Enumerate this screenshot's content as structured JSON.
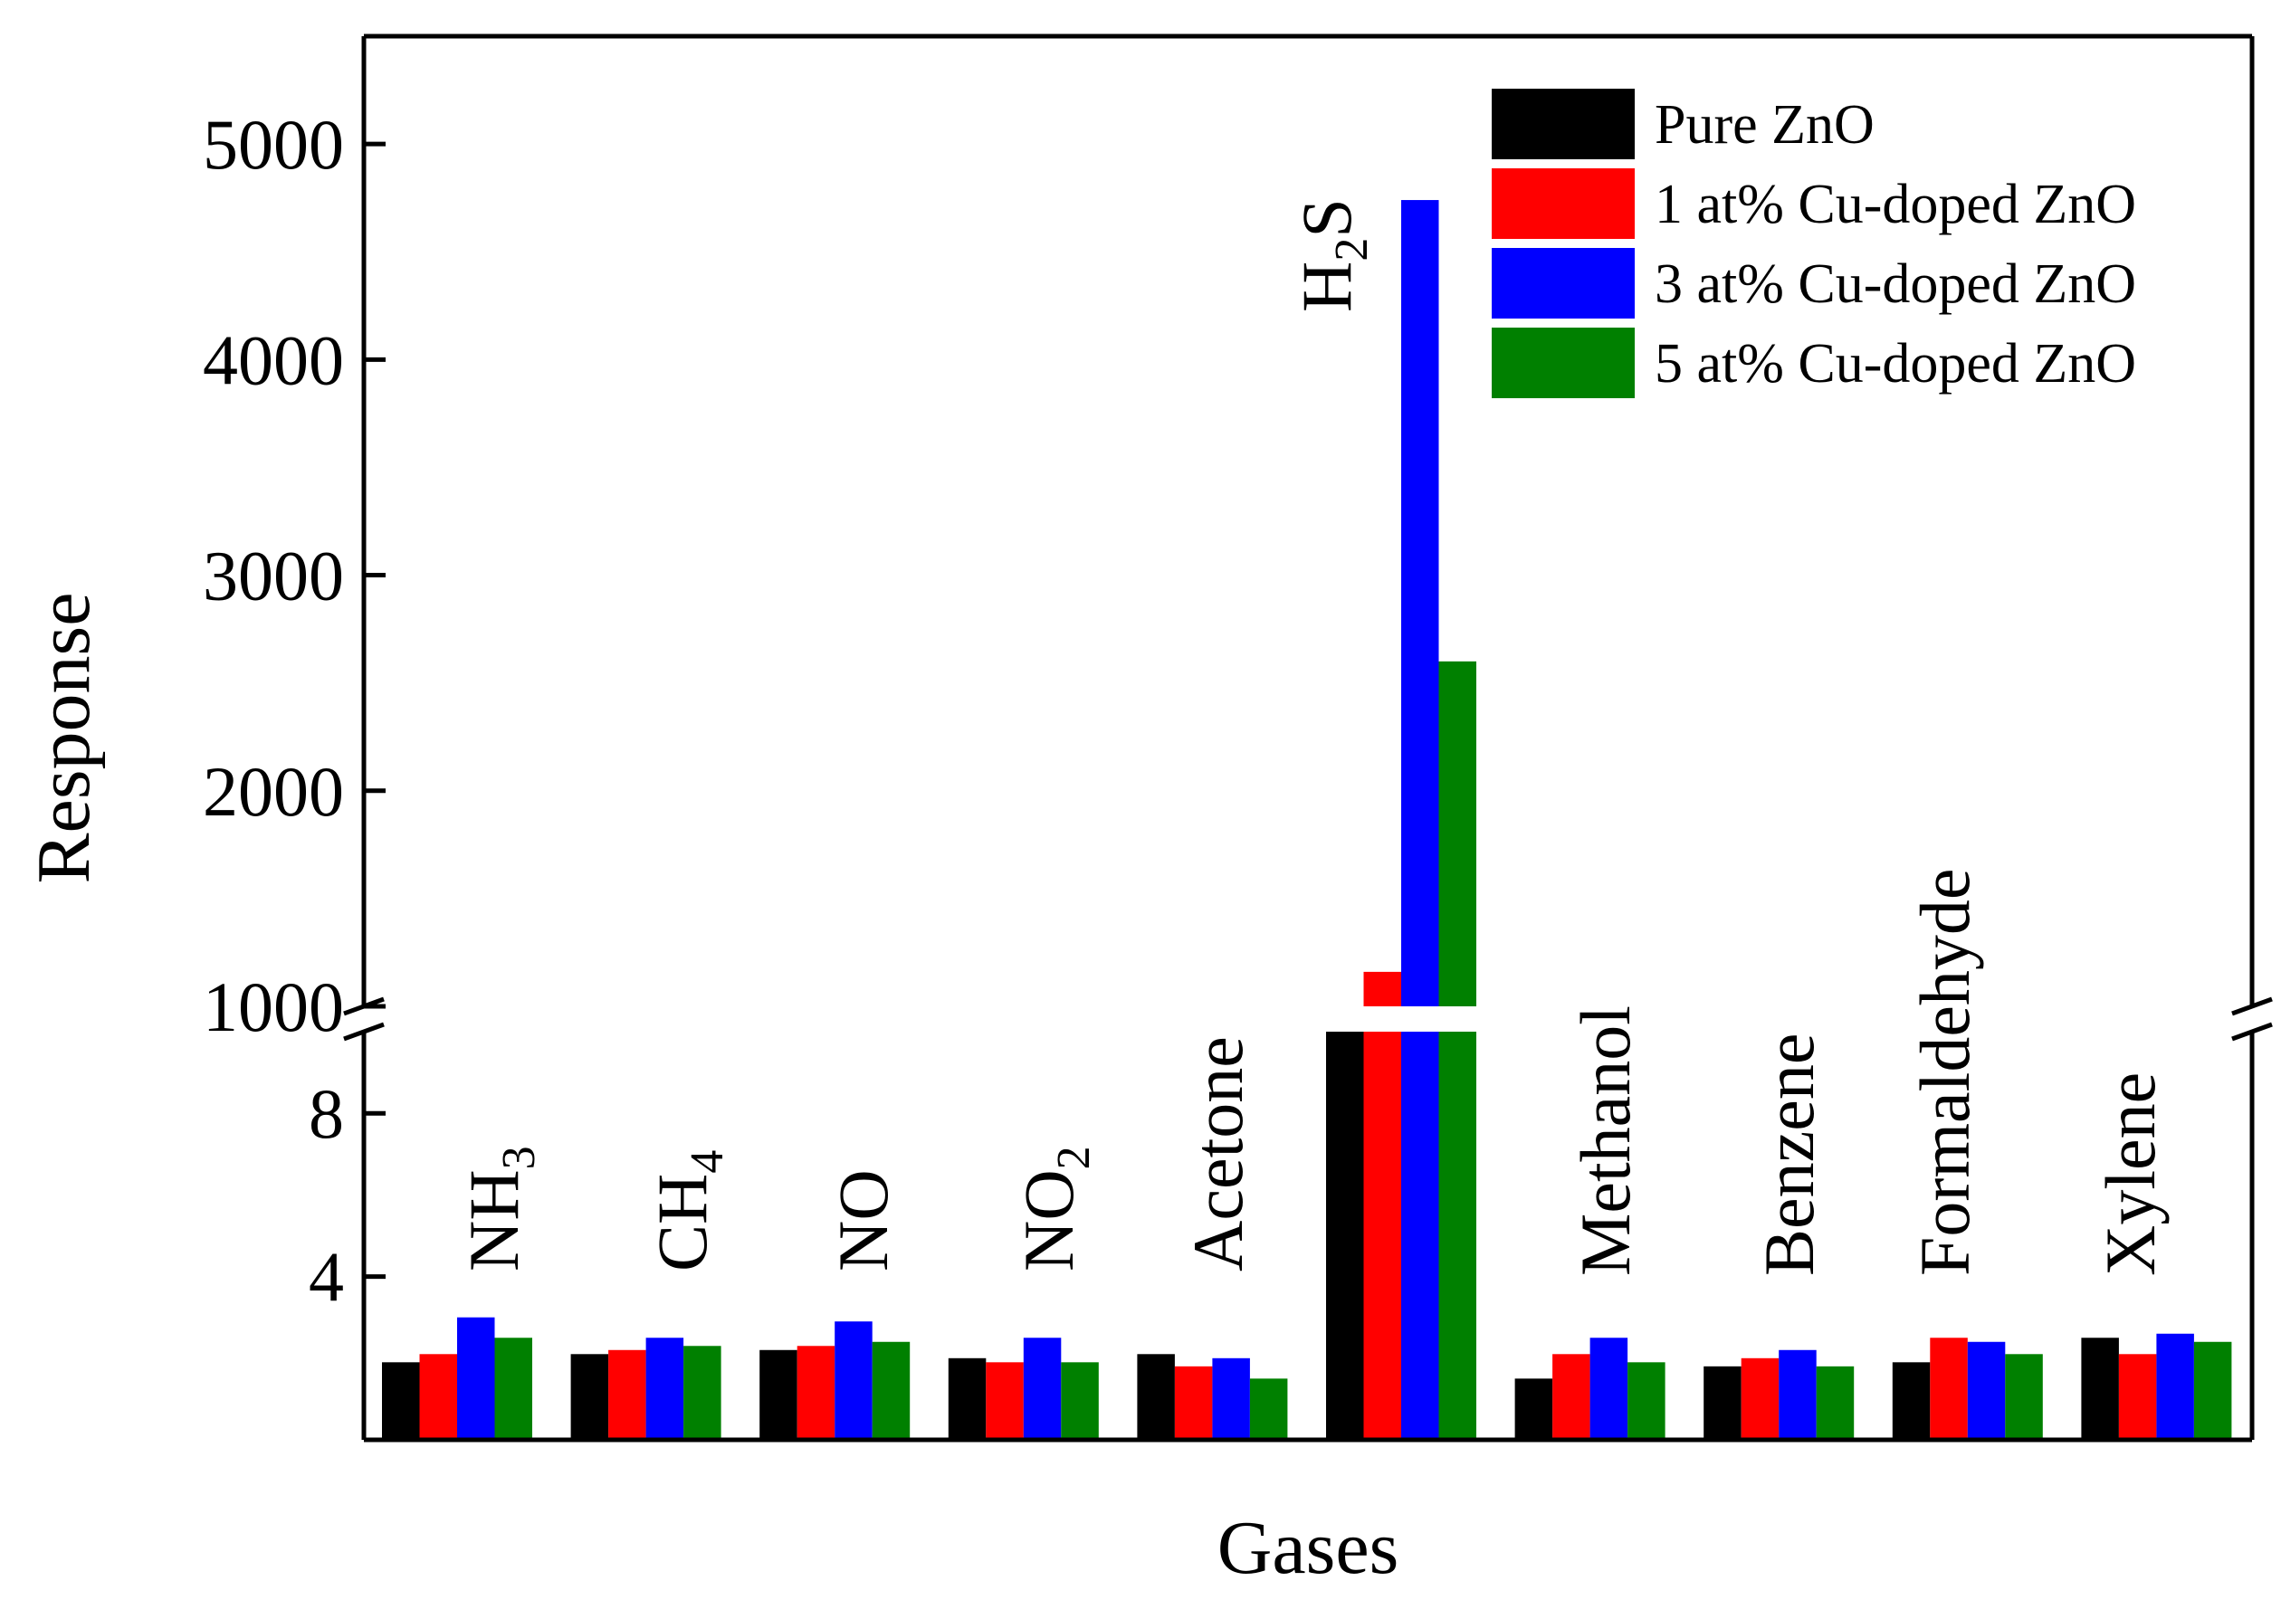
{
  "chart_data": {
    "type": "bar",
    "title": "",
    "xlabel": "Gases",
    "ylabel": "Response",
    "y_axis": {
      "broken": true,
      "lower_range": [
        0,
        10
      ],
      "lower_ticks": [
        4,
        8
      ],
      "upper_range": [
        1000,
        5500
      ],
      "upper_ticks": [
        1000,
        2000,
        3000,
        4000,
        5000
      ]
    },
    "categories": [
      "NH3",
      "CH4",
      "NO",
      "NO2",
      "Acetone",
      "H2S",
      "Methanol",
      "Benzene",
      "Formaldehyde",
      "Xylene"
    ],
    "category_labels": [
      {
        "base": "NH",
        "sub": "3",
        "tail": ""
      },
      {
        "base": "CH",
        "sub": "4",
        "tail": ""
      },
      {
        "base": "NO",
        "sub": "",
        "tail": ""
      },
      {
        "base": "NO",
        "sub": "2",
        "tail": ""
      },
      {
        "base": "Acetone",
        "sub": "",
        "tail": ""
      },
      {
        "base": "H",
        "sub": "2",
        "tail": "S"
      },
      {
        "base": "Methanol",
        "sub": "",
        "tail": ""
      },
      {
        "base": "Benzene",
        "sub": "",
        "tail": ""
      },
      {
        "base": "Formaldehyde",
        "sub": "",
        "tail": ""
      },
      {
        "base": "Xylene",
        "sub": "",
        "tail": ""
      }
    ],
    "series": [
      {
        "name": "Pure ZnO",
        "color": "#000000",
        "values": [
          1.9,
          2.1,
          2.2,
          2.0,
          2.1,
          10,
          1.5,
          1.8,
          1.9,
          2.5
        ]
      },
      {
        "name": "1 at% Cu-doped ZnO",
        "color": "#ff0000",
        "values": [
          2.1,
          2.2,
          2.3,
          1.9,
          1.8,
          1160,
          2.1,
          2.0,
          2.5,
          2.1
        ]
      },
      {
        "name": "3 at% Cu-doped ZnO",
        "color": "#0000ff",
        "values": [
          3.0,
          2.5,
          2.9,
          2.5,
          2.0,
          4740,
          2.5,
          2.2,
          2.4,
          2.6
        ]
      },
      {
        "name": "5 at% Cu-doped ZnO",
        "color": "#008000",
        "values": [
          2.5,
          2.3,
          2.4,
          1.9,
          1.5,
          2600,
          1.9,
          1.8,
          2.1,
          2.4
        ]
      }
    ],
    "legend_position": "top-right"
  }
}
